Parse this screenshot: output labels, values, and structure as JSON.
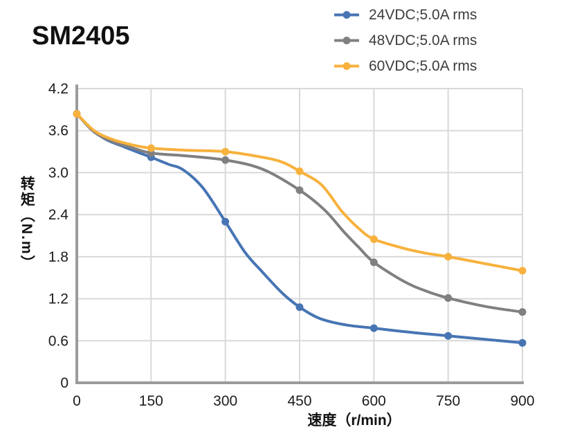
{
  "title": "SM2405",
  "legend": {
    "position": "top-right",
    "items": [
      {
        "label": "24VDC;5.0A rms",
        "color": "#4775B4"
      },
      {
        "label": "48VDC;5.0A rms",
        "color": "#808080"
      },
      {
        "label": "60VDC;5.0A rms",
        "color": "#F7B13C"
      }
    ]
  },
  "chart_data": {
    "type": "line",
    "title": "SM2405",
    "xlabel": "速度（r/min）",
    "ylabel": "转矩（N.m）",
    "xlim": [
      0,
      900
    ],
    "ylim": [
      0,
      4.2
    ],
    "grid": true,
    "grid_color": "#D9D9D9",
    "axis_color": "#9B9B9B",
    "x_ticks": [
      0,
      150,
      300,
      450,
      600,
      750,
      900
    ],
    "x_tick_labels": [
      "0",
      "150",
      "300",
      "450",
      "600",
      "750",
      "900"
    ],
    "y_ticks": [
      0,
      0.6,
      1.2,
      1.8,
      2.4,
      3.0,
      3.6,
      4.2
    ],
    "y_tick_labels": [
      "0",
      "0.6",
      "1.2",
      "1.8",
      "2.4",
      "3.0",
      "3.6",
      "4.2"
    ],
    "marker_x": [
      0,
      150,
      300,
      450,
      600,
      750,
      900
    ],
    "series": [
      {
        "name": "24VDC;5.0A rms",
        "color": "#4775B4",
        "values": [
          3.84,
          3.22,
          2.3,
          1.08,
          0.78,
          0.67,
          0.57
        ],
        "curve": [
          [
            0,
            3.84
          ],
          [
            30,
            3.62
          ],
          [
            60,
            3.47
          ],
          [
            95,
            3.37
          ],
          [
            120,
            3.3
          ],
          [
            150,
            3.22
          ],
          [
            185,
            3.12
          ],
          [
            215,
            3.04
          ],
          [
            255,
            2.78
          ],
          [
            300,
            2.3
          ],
          [
            340,
            1.86
          ],
          [
            375,
            1.58
          ],
          [
            415,
            1.28
          ],
          [
            450,
            1.08
          ],
          [
            490,
            0.92
          ],
          [
            540,
            0.83
          ],
          [
            600,
            0.78
          ],
          [
            675,
            0.72
          ],
          [
            750,
            0.67
          ],
          [
            825,
            0.62
          ],
          [
            900,
            0.57
          ]
        ]
      },
      {
        "name": "48VDC;5.0A rms",
        "color": "#808080",
        "values": [
          3.84,
          3.28,
          3.18,
          2.75,
          1.72,
          1.21,
          1.01
        ],
        "curve": [
          [
            0,
            3.84
          ],
          [
            35,
            3.58
          ],
          [
            70,
            3.45
          ],
          [
            110,
            3.36
          ],
          [
            150,
            3.28
          ],
          [
            220,
            3.24
          ],
          [
            300,
            3.18
          ],
          [
            375,
            3.05
          ],
          [
            450,
            2.75
          ],
          [
            500,
            2.47
          ],
          [
            540,
            2.15
          ],
          [
            570,
            1.93
          ],
          [
            600,
            1.72
          ],
          [
            660,
            1.45
          ],
          [
            705,
            1.31
          ],
          [
            750,
            1.21
          ],
          [
            825,
            1.09
          ],
          [
            900,
            1.01
          ]
        ]
      },
      {
        "name": "60VDC;5.0A rms",
        "color": "#F7B13C",
        "values": [
          3.84,
          3.35,
          3.3,
          3.02,
          2.05,
          1.8,
          1.6
        ],
        "curve": [
          [
            0,
            3.84
          ],
          [
            35,
            3.6
          ],
          [
            70,
            3.48
          ],
          [
            110,
            3.4
          ],
          [
            150,
            3.35
          ],
          [
            220,
            3.32
          ],
          [
            300,
            3.3
          ],
          [
            375,
            3.22
          ],
          [
            415,
            3.15
          ],
          [
            450,
            3.02
          ],
          [
            495,
            2.82
          ],
          [
            535,
            2.45
          ],
          [
            570,
            2.2
          ],
          [
            600,
            2.05
          ],
          [
            660,
            1.92
          ],
          [
            705,
            1.85
          ],
          [
            750,
            1.8
          ],
          [
            825,
            1.7
          ],
          [
            900,
            1.6
          ]
        ]
      }
    ]
  }
}
